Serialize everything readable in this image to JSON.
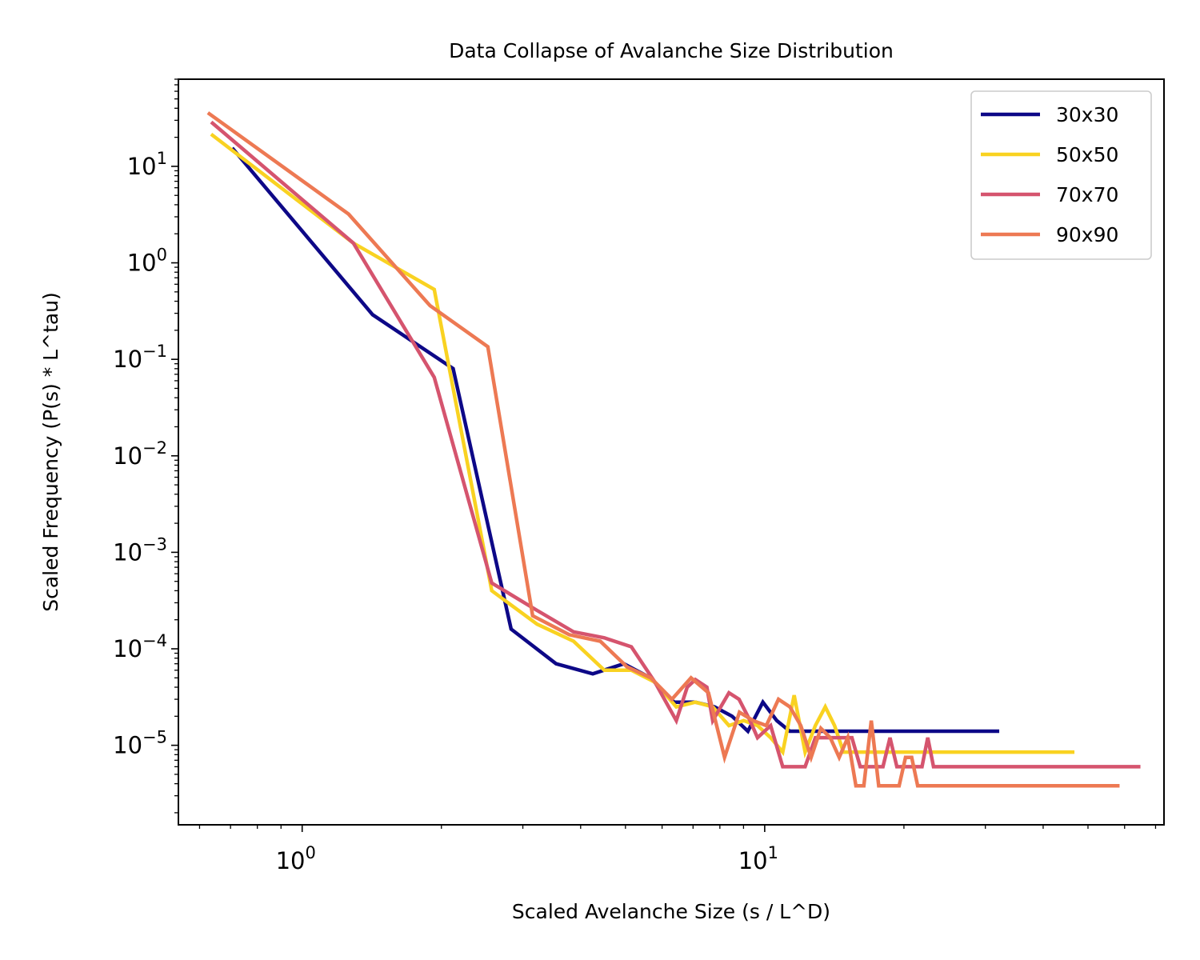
{
  "chart_data": {
    "type": "line",
    "title": "Data Collapse of Avalanche Size Distribution",
    "xlabel": "Scaled Avelanche Size (s / L^D)",
    "ylabel": "Scaled Frequency (P(s) * L^tau)",
    "xscale": "log",
    "yscale": "log",
    "xlim": [
      0.54,
      73
    ],
    "ylim": [
      1.5e-06,
      80
    ],
    "grid": false,
    "legend_position": "top-right",
    "x_ticks": [
      {
        "value": 1,
        "base": "10",
        "exp": "0"
      },
      {
        "value": 10,
        "base": "10",
        "exp": "1"
      }
    ],
    "y_ticks": [
      {
        "value": 10,
        "base": "10",
        "exp": "1"
      },
      {
        "value": 1,
        "base": "10",
        "exp": "0"
      },
      {
        "value": 0.1,
        "base": "10",
        "exp": "−1"
      },
      {
        "value": 0.01,
        "base": "10",
        "exp": "−2"
      },
      {
        "value": 0.001,
        "base": "10",
        "exp": "−3"
      },
      {
        "value": 0.0001,
        "base": "10",
        "exp": "−4"
      },
      {
        "value": 1e-05,
        "base": "10",
        "exp": "−5"
      }
    ],
    "series": [
      {
        "name": "30x30",
        "color": "#0d0887",
        "points": [
          [
            0.71,
            15
          ],
          [
            1.42,
            0.29
          ],
          [
            2.12,
            0.08
          ],
          [
            2.83,
            0.00016
          ],
          [
            3.54,
            7e-05
          ],
          [
            4.25,
            5.5e-05
          ],
          [
            4.96,
            7e-05
          ],
          [
            5.66,
            5e-05
          ],
          [
            6.37,
            2.8e-05
          ],
          [
            7.08,
            2.8e-05
          ],
          [
            7.79,
            2.5e-05
          ],
          [
            8.5,
            2e-05
          ],
          [
            9.2,
            1.4e-05
          ],
          [
            9.91,
            2.8e-05
          ],
          [
            10.62,
            1.8e-05
          ],
          [
            11.33,
            1.4e-05
          ],
          [
            31.86,
            1.4e-05
          ]
        ]
      },
      {
        "name": "50x50",
        "color": "#f9d221",
        "points": [
          [
            0.64,
            21
          ],
          [
            1.29,
            1.6
          ],
          [
            1.93,
            0.53
          ],
          [
            2.57,
            0.0004
          ],
          [
            3.22,
            0.00018
          ],
          [
            3.86,
            0.00012
          ],
          [
            4.5,
            6e-05
          ],
          [
            5.15,
            6e-05
          ],
          [
            5.79,
            4.5e-05
          ],
          [
            6.44,
            2.5e-05
          ],
          [
            7.08,
            2.8e-05
          ],
          [
            7.72,
            2.5e-05
          ],
          [
            8.37,
            1.6e-05
          ],
          [
            9.01,
            1.8e-05
          ],
          [
            9.65,
            1.6e-05
          ],
          [
            10.3,
            1.2e-05
          ],
          [
            10.94,
            8.5e-06
          ],
          [
            11.58,
            3.3e-05
          ],
          [
            12.23,
            8.5e-06
          ],
          [
            12.87,
            1.6e-05
          ],
          [
            13.52,
            2.5e-05
          ],
          [
            14.16,
            1.6e-05
          ],
          [
            14.8,
            8.5e-06
          ],
          [
            46.33,
            8.5e-06
          ]
        ]
      },
      {
        "name": "70x70",
        "color": "#d5546e",
        "points": [
          [
            0.64,
            28
          ],
          [
            1.29,
            1.6
          ],
          [
            1.93,
            0.065
          ],
          [
            2.57,
            0.00048
          ],
          [
            3.22,
            0.00025
          ],
          [
            3.86,
            0.00015
          ],
          [
            4.5,
            0.00013
          ],
          [
            5.15,
            0.000105
          ],
          [
            5.79,
            4.5e-05
          ],
          [
            6.44,
            1.8e-05
          ],
          [
            6.8,
            4e-05
          ],
          [
            7.08,
            4.8e-05
          ],
          [
            7.5,
            4e-05
          ],
          [
            7.72,
            1.8e-05
          ],
          [
            8.37,
            3.5e-05
          ],
          [
            8.8,
            3e-05
          ],
          [
            9.3,
            1.8e-05
          ],
          [
            9.65,
            1.2e-05
          ],
          [
            10.3,
            1.6e-05
          ],
          [
            10.94,
            6e-06
          ],
          [
            12.23,
            6e-06
          ],
          [
            12.87,
            1.2e-05
          ],
          [
            15.44,
            1.2e-05
          ],
          [
            16.09,
            6e-06
          ],
          [
            17.37,
            6e-06
          ],
          [
            18.02,
            6e-06
          ],
          [
            18.66,
            1.2e-05
          ],
          [
            19.31,
            6e-06
          ],
          [
            21.88,
            6e-06
          ],
          [
            22.52,
            1.2e-05
          ],
          [
            23.17,
            6e-06
          ],
          [
            64.35,
            6e-06
          ]
        ]
      },
      {
        "name": "90x90",
        "color": "#ed7953",
        "points": [
          [
            0.63,
            35
          ],
          [
            1.26,
            3.2
          ],
          [
            1.89,
            0.36
          ],
          [
            2.52,
            0.135
          ],
          [
            3.15,
            0.00022
          ],
          [
            3.78,
            0.00014
          ],
          [
            4.41,
            0.00012
          ],
          [
            5.04,
            6.5e-05
          ],
          [
            5.67,
            5e-05
          ],
          [
            6.3,
            3e-05
          ],
          [
            6.93,
            5e-05
          ],
          [
            7.56,
            3.5e-05
          ],
          [
            8.19,
            7.5e-06
          ],
          [
            8.82,
            2.2e-05
          ],
          [
            9.45,
            1.8e-05
          ],
          [
            10.08,
            1.6e-05
          ],
          [
            10.71,
            3e-05
          ],
          [
            11.34,
            2.5e-05
          ],
          [
            11.97,
            1.6e-05
          ],
          [
            12.6,
            7.5e-06
          ],
          [
            13.23,
            1.5e-05
          ],
          [
            13.86,
            1.2e-05
          ],
          [
            14.49,
            7.5e-06
          ],
          [
            15.12,
            1.2e-05
          ],
          [
            15.75,
            3.8e-06
          ],
          [
            16.38,
            3.8e-06
          ],
          [
            17.0,
            1.8e-05
          ],
          [
            17.64,
            3.8e-06
          ],
          [
            18.27,
            3.8e-06
          ],
          [
            19.53,
            3.8e-06
          ],
          [
            20.16,
            7.5e-06
          ],
          [
            20.79,
            7.5e-06
          ],
          [
            21.42,
            3.8e-06
          ],
          [
            58.0,
            3.8e-06
          ]
        ]
      }
    ]
  }
}
